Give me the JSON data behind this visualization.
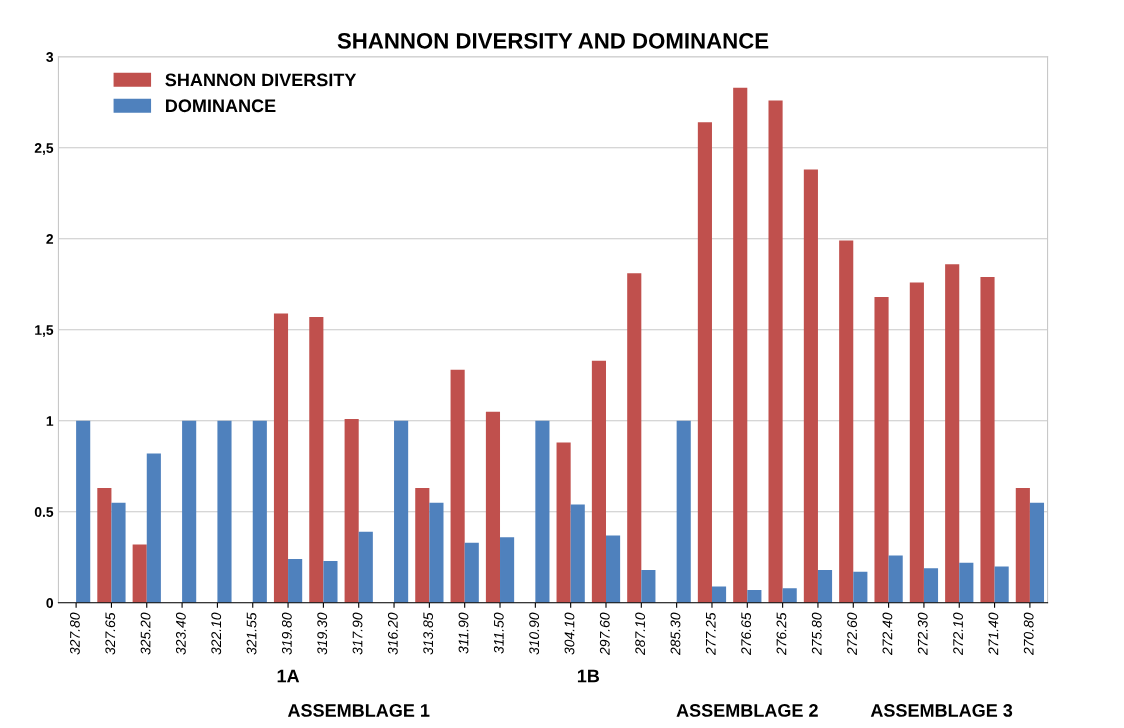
{
  "chart_data": {
    "type": "bar",
    "title": "SHANNON DIVERSITY AND DOMINANCE",
    "categories": [
      "327.80",
      "327.65",
      "325.20",
      "323.40",
      "322.10",
      "321.55",
      "319.80",
      "319.30",
      "317.90",
      "316.20",
      "313.85",
      "311.90",
      "311.50",
      "310.90",
      "304.10",
      "297.60",
      "287.10",
      "285.30",
      "277.25",
      "276.65",
      "276.25",
      "275.80",
      "272.60",
      "272.40",
      "272.30",
      "272.10",
      "271.40",
      "270.80"
    ],
    "series": [
      {
        "name": "SHANNON DIVERSITY",
        "color": "#c0504d",
        "values": [
          0,
          0.63,
          0.32,
          0,
          0,
          0,
          1.59,
          1.57,
          1.01,
          0,
          0.63,
          1.28,
          1.05,
          0,
          0.88,
          1.33,
          1.81,
          0,
          2.64,
          2.83,
          2.76,
          2.38,
          1.99,
          1.68,
          1.76,
          1.86,
          1.79,
          0.63
        ]
      },
      {
        "name": "DOMINANCE",
        "color": "#4f81bd",
        "values": [
          1,
          0.55,
          0.82,
          1,
          1,
          1,
          0.24,
          0.23,
          0.39,
          1,
          0.55,
          0.33,
          0.36,
          1,
          0.54,
          0.37,
          0.18,
          1,
          0.09,
          0.07,
          0.08,
          0.18,
          0.17,
          0.26,
          0.19,
          0.22,
          0.2,
          0.55
        ]
      }
    ],
    "ylim": [
      0,
      3
    ],
    "yticks": [
      0,
      {
        "value": 0.5,
        "label": "0.5"
      },
      1,
      {
        "value": 1.5,
        "label": "1,5"
      },
      2,
      {
        "value": 2.5,
        "label": "2,5"
      },
      3
    ],
    "grid": "y",
    "legend": "top left",
    "annotations": [
      "1A",
      "1B",
      "ASSEMBLAGE 1",
      "ASSEMBLAGE 2",
      "ASSEMBLAGE 3"
    ]
  }
}
